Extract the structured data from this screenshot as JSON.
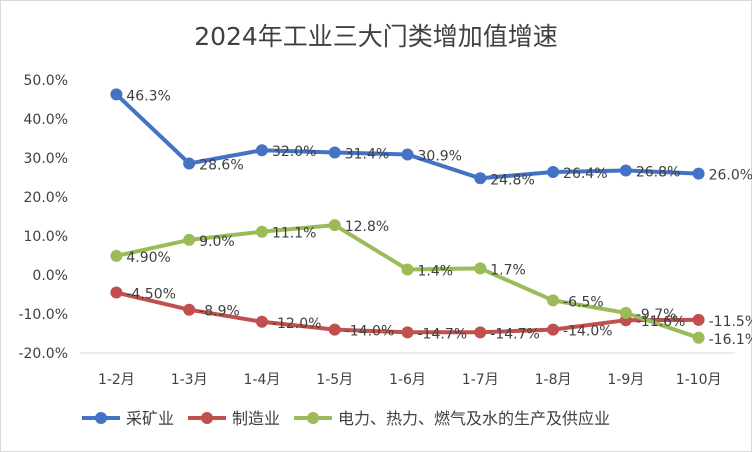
{
  "chart_data": {
    "type": "line",
    "title": "2024年工业三大门类增加值增速",
    "categories": [
      "1-2月",
      "1-3月",
      "1-4月",
      "1-5月",
      "1-6月",
      "1-7月",
      "1-8月",
      "1-9月",
      "1-10月"
    ],
    "ylim": [
      -20,
      50
    ],
    "yticks": [
      "50.0%",
      "40.0%",
      "30.0%",
      "20.0%",
      "10.0%",
      "0.0%",
      "-10.0%",
      "-20.0%"
    ],
    "grid": false,
    "legend_position": "bottom",
    "series": [
      {
        "name": "采矿业",
        "color": "#4472C4",
        "values": [
          46.3,
          28.6,
          32.0,
          31.4,
          30.9,
          24.8,
          26.4,
          26.8,
          26.0
        ],
        "labels": [
          "46.3%",
          "28.6%",
          "32.0%",
          "31.4%",
          "30.9%",
          "24.8%",
          "26.4%",
          "26.8%",
          "26.0%"
        ]
      },
      {
        "name": "制造业",
        "color": "#C0504D",
        "values": [
          -4.5,
          -8.9,
          -12.0,
          -14.0,
          -14.7,
          -14.7,
          -14.0,
          -11.6,
          -11.5
        ],
        "labels": [
          "-4.50%",
          "-8.9%",
          "-12.0%",
          "-14.0%",
          "-14.7%",
          "-14.7%",
          "-14.0%",
          "-11.6%",
          "-11.5%"
        ]
      },
      {
        "name": "电力、热力、燃气及水的生产及供应业",
        "color": "#9BBB59",
        "values": [
          4.9,
          9.0,
          11.1,
          12.8,
          1.4,
          1.7,
          -6.5,
          -9.7,
          -16.1
        ],
        "labels": [
          "4.90%",
          "9.0%",
          "11.1%",
          "12.8%",
          "1.4%",
          "1.7%",
          "-6.5%",
          "-9.7%",
          "-16.1%"
        ]
      }
    ]
  }
}
